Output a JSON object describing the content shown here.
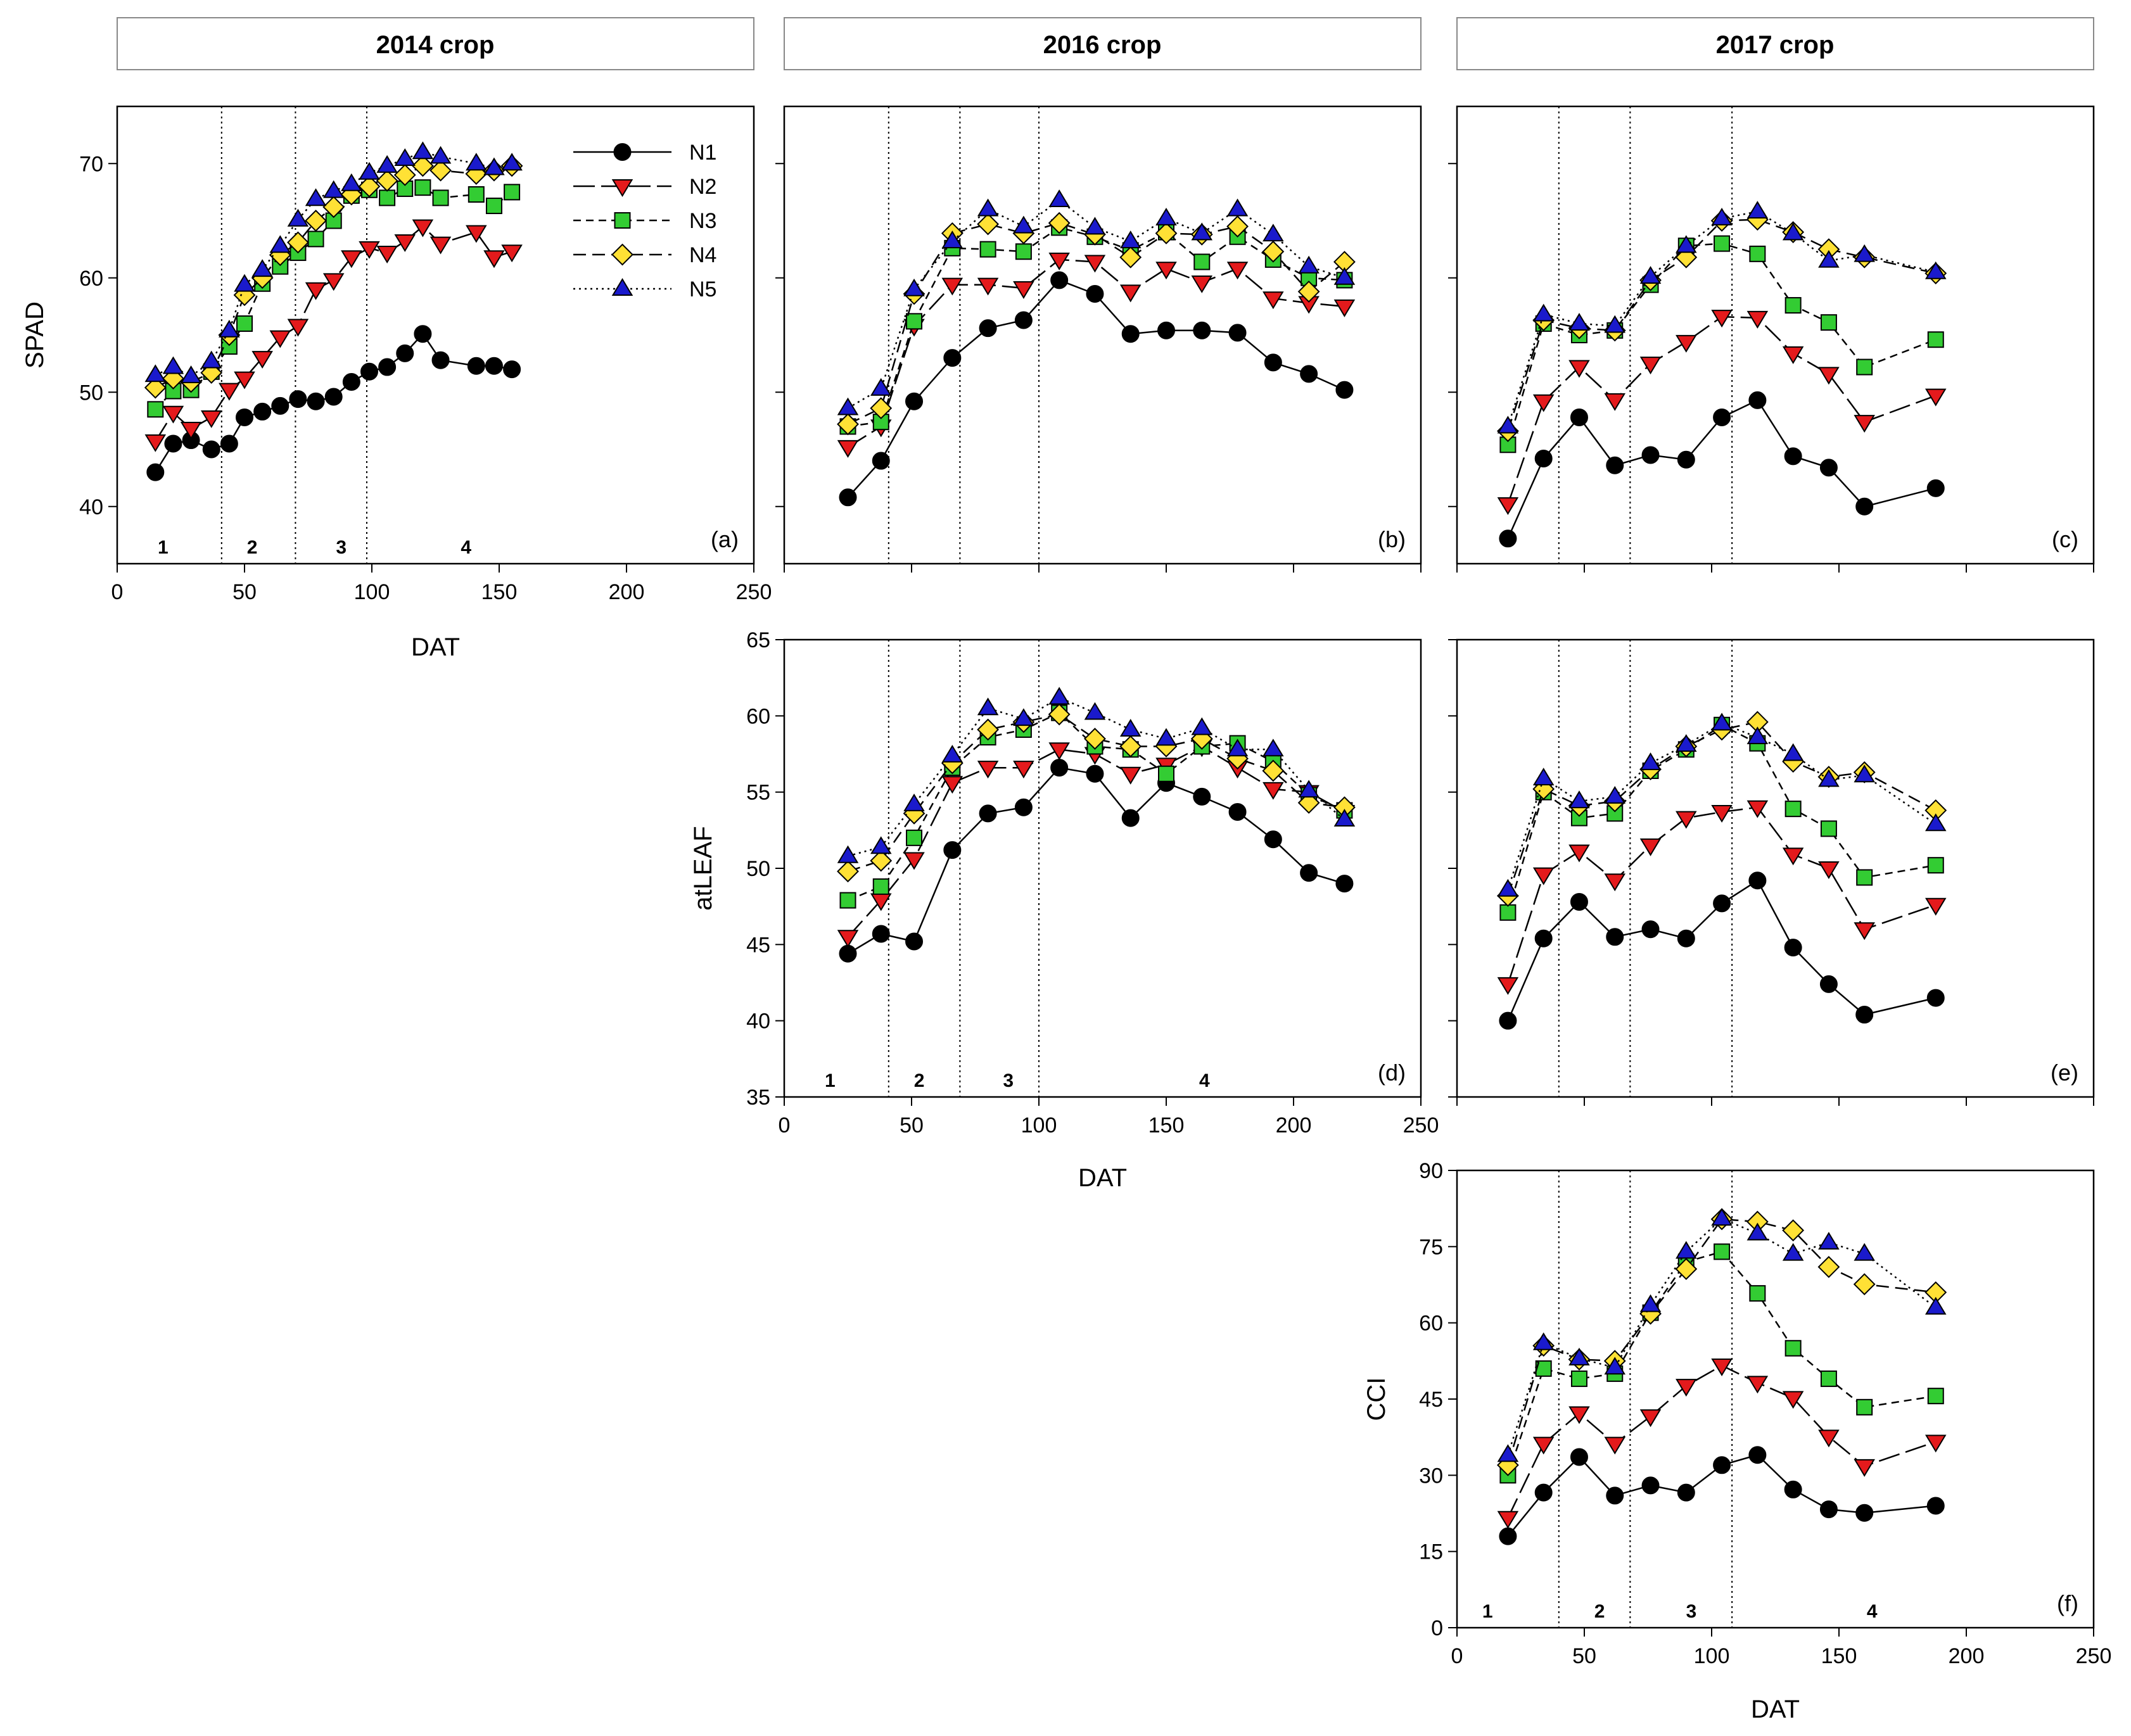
{
  "figure": {
    "headers": [
      "2014 crop",
      "2016 crop",
      "2017 crop"
    ],
    "series_names": [
      "N1",
      "N2",
      "N3",
      "N4",
      "N5"
    ],
    "series_styles": [
      {
        "name": "N1",
        "color": "#000000",
        "marker": "circle",
        "dash": "solid"
      },
      {
        "name": "N2",
        "color": "#e41a1c",
        "marker": "triangle-down",
        "dash": "longdash"
      },
      {
        "name": "N3",
        "color": "#33cc33",
        "marker": "square",
        "dash": "shortdash"
      },
      {
        "name": "N4",
        "color": "#ffe135",
        "marker": "diamond",
        "dash": "dash"
      },
      {
        "name": "N5",
        "color": "#1a1acc",
        "marker": "triangle-up",
        "dash": "dotted"
      }
    ]
  },
  "chart_data": [
    {
      "id": "a",
      "type": "line",
      "title": "2014 crop",
      "panel_tag": "(a)",
      "xlabel": "DAT",
      "ylabel": "SPAD",
      "xlim": [
        0,
        250
      ],
      "ylim": [
        35,
        75
      ],
      "xticks": [
        0,
        50,
        100,
        150,
        200,
        250
      ],
      "yticks": [
        40,
        50,
        60,
        70
      ],
      "phase_boundaries": [
        41,
        70,
        98
      ],
      "phase_labels": [
        {
          "x": 18,
          "text": "1"
        },
        {
          "x": 53,
          "text": "2"
        },
        {
          "x": 88,
          "text": "3"
        },
        {
          "x": 137,
          "text": "4"
        }
      ],
      "x": [
        15,
        22,
        29,
        37,
        44,
        50,
        57,
        64,
        71,
        78,
        85,
        92,
        99,
        106,
        113,
        120,
        127,
        141,
        148,
        155
      ],
      "series": [
        {
          "name": "N1",
          "values": [
            43.0,
            45.5,
            45.8,
            45.0,
            45.5,
            47.8,
            48.3,
            48.8,
            49.4,
            49.2,
            49.6,
            50.9,
            51.8,
            52.2,
            53.4,
            55.1,
            52.8,
            52.3,
            52.3,
            52.0
          ]
        },
        {
          "name": "N2",
          "values": [
            45.7,
            48.2,
            46.8,
            47.8,
            50.2,
            51.2,
            53.0,
            54.8,
            55.8,
            59.0,
            59.8,
            61.8,
            62.6,
            62.2,
            63.2,
            64.5,
            63.0,
            64.0,
            61.8,
            62.3
          ]
        },
        {
          "name": "N3",
          "values": [
            48.5,
            50.1,
            50.2,
            51.8,
            54.0,
            56.0,
            59.5,
            61.0,
            62.2,
            63.4,
            65.0,
            67.2,
            67.7,
            67.0,
            67.8,
            67.9,
            67.0,
            67.3,
            66.3,
            67.5
          ]
        },
        {
          "name": "N4",
          "values": [
            50.4,
            51.2,
            50.9,
            51.7,
            55.0,
            58.5,
            60.0,
            62.0,
            63.1,
            65.0,
            66.2,
            67.3,
            68.0,
            68.5,
            69.0,
            69.8,
            69.4,
            69.1,
            69.4,
            69.8
          ]
        },
        {
          "name": "N5",
          "values": [
            51.5,
            52.2,
            51.4,
            52.7,
            55.4,
            59.4,
            60.7,
            62.8,
            65.1,
            66.9,
            67.6,
            68.2,
            69.2,
            69.8,
            70.4,
            71.0,
            70.6,
            70.0,
            69.6,
            70.0
          ]
        }
      ]
    },
    {
      "id": "b",
      "type": "line",
      "title": "2016 crop",
      "panel_tag": "(b)",
      "xlabel": "",
      "ylabel": "",
      "xlim": [
        0,
        250
      ],
      "ylim": [
        35,
        75
      ],
      "xticks": [
        0,
        50,
        100,
        150,
        200,
        250
      ],
      "yticks": [
        40,
        50,
        60,
        70
      ],
      "phase_boundaries": [
        41,
        69,
        100
      ],
      "phase_labels": [],
      "x": [
        25,
        38,
        51,
        66,
        80,
        94,
        108,
        122,
        136,
        150,
        164,
        178,
        192,
        206,
        220
      ],
      "series": [
        {
          "name": "N1",
          "values": [
            40.8,
            44.0,
            49.2,
            53.0,
            55.6,
            56.3,
            59.8,
            58.6,
            55.1,
            55.4,
            55.4,
            55.2,
            52.6,
            51.6,
            50.2
          ]
        },
        {
          "name": "N2",
          "values": [
            45.2,
            47.0,
            55.8,
            59.4,
            59.4,
            59.1,
            61.6,
            61.4,
            58.8,
            60.8,
            59.6,
            60.8,
            58.2,
            57.8,
            57.5
          ]
        },
        {
          "name": "N3",
          "values": [
            47.0,
            47.4,
            56.2,
            62.6,
            62.5,
            62.3,
            64.4,
            63.6,
            62.4,
            64.0,
            61.4,
            63.6,
            61.6,
            60.0,
            59.8
          ]
        },
        {
          "name": "N4",
          "values": [
            47.2,
            48.6,
            58.6,
            63.9,
            64.7,
            63.9,
            64.8,
            63.8,
            61.8,
            63.9,
            63.8,
            64.5,
            62.3,
            58.8,
            61.4
          ]
        },
        {
          "name": "N5",
          "values": [
            48.6,
            50.3,
            59.0,
            63.2,
            66.0,
            64.5,
            66.8,
            64.4,
            63.2,
            65.2,
            63.9,
            66.0,
            63.8,
            61.0,
            60.0
          ]
        }
      ]
    },
    {
      "id": "c",
      "type": "line",
      "title": "2017 crop",
      "panel_tag": "(c)",
      "xlabel": "",
      "ylabel": "",
      "xlim": [
        0,
        250
      ],
      "ylim": [
        35,
        75
      ],
      "xticks": [
        0,
        50,
        100,
        150,
        200,
        250
      ],
      "yticks": [
        40,
        50,
        60,
        70
      ],
      "phase_boundaries": [
        40,
        68,
        108
      ],
      "phase_labels": [],
      "x": [
        20,
        34,
        48,
        62,
        76,
        90,
        104,
        118,
        132,
        146,
        160,
        188
      ],
      "series": [
        {
          "name": "N1",
          "values": [
            37.2,
            44.2,
            47.8,
            43.6,
            44.5,
            44.1,
            47.8,
            49.3,
            44.4,
            43.4,
            40.0,
            41.6
          ]
        },
        {
          "name": "N2",
          "values": [
            40.2,
            49.2,
            52.2,
            49.3,
            52.5,
            54.4,
            56.6,
            56.5,
            53.4,
            51.6,
            47.4,
            49.7
          ]
        },
        {
          "name": "N3",
          "values": [
            45.4,
            56.0,
            55.0,
            55.4,
            59.4,
            62.8,
            63.0,
            62.1,
            57.6,
            56.1,
            52.2,
            54.6
          ]
        },
        {
          "name": "N4",
          "values": [
            46.6,
            56.3,
            55.6,
            55.4,
            59.8,
            61.8,
            65.0,
            65.1,
            64.0,
            62.5,
            61.8,
            60.4
          ]
        },
        {
          "name": "N5",
          "values": [
            47.0,
            56.8,
            56.0,
            55.8,
            60.1,
            62.8,
            65.2,
            65.8,
            63.9,
            61.5,
            62.0,
            60.5
          ]
        }
      ]
    },
    {
      "id": "d",
      "type": "line",
      "title": "",
      "panel_tag": "(d)",
      "xlabel": "DAT",
      "ylabel": "atLEAF",
      "xlim": [
        0,
        250
      ],
      "ylim": [
        35,
        65
      ],
      "xticks": [
        0,
        50,
        100,
        150,
        200,
        250
      ],
      "yticks": [
        35,
        40,
        45,
        50,
        55,
        60,
        65
      ],
      "phase_boundaries": [
        41,
        69,
        100
      ],
      "phase_labels": [
        {
          "x": 18,
          "text": "1"
        },
        {
          "x": 53,
          "text": "2"
        },
        {
          "x": 88,
          "text": "3"
        },
        {
          "x": 165,
          "text": "4"
        }
      ],
      "x": [
        25,
        38,
        51,
        66,
        80,
        94,
        108,
        122,
        136,
        150,
        164,
        178,
        192,
        206,
        220
      ],
      "series": [
        {
          "name": "N1",
          "values": [
            44.4,
            45.7,
            45.2,
            51.2,
            53.6,
            54.0,
            56.6,
            56.2,
            53.3,
            55.6,
            54.7,
            53.7,
            51.9,
            49.7,
            49.0
          ]
        },
        {
          "name": "N2",
          "values": [
            45.5,
            47.9,
            50.6,
            55.6,
            56.6,
            56.6,
            57.8,
            57.5,
            56.2,
            56.8,
            58.0,
            56.6,
            55.2,
            55.0,
            53.7
          ]
        },
        {
          "name": "N3",
          "values": [
            47.9,
            48.8,
            52.0,
            56.6,
            58.6,
            59.1,
            60.2,
            58.0,
            57.8,
            56.2,
            58.0,
            58.2,
            57.0,
            54.8,
            53.8
          ]
        },
        {
          "name": "N4",
          "values": [
            49.8,
            50.5,
            53.6,
            56.9,
            59.1,
            59.6,
            60.1,
            58.5,
            58.0,
            58.0,
            58.5,
            57.2,
            56.4,
            54.3,
            54.0
          ]
        },
        {
          "name": "N5",
          "values": [
            50.8,
            51.4,
            54.2,
            57.4,
            60.5,
            59.8,
            61.2,
            60.2,
            59.1,
            58.5,
            59.2,
            57.8,
            57.8,
            55.1,
            53.2
          ]
        }
      ]
    },
    {
      "id": "e",
      "type": "line",
      "title": "",
      "panel_tag": "(e)",
      "xlabel": "",
      "ylabel": "",
      "xlim": [
        0,
        250
      ],
      "ylim": [
        35,
        65
      ],
      "xticks": [
        0,
        50,
        100,
        150,
        200,
        250
      ],
      "yticks": [
        35,
        40,
        45,
        50,
        55,
        60,
        65
      ],
      "phase_boundaries": [
        40,
        68,
        108
      ],
      "phase_labels": [],
      "x": [
        20,
        34,
        48,
        62,
        76,
        90,
        104,
        118,
        132,
        146,
        160,
        188
      ],
      "series": [
        {
          "name": "N1",
          "values": [
            40.0,
            45.4,
            47.8,
            45.5,
            46.0,
            45.4,
            47.7,
            49.2,
            44.8,
            42.4,
            40.4,
            41.5
          ]
        },
        {
          "name": "N2",
          "values": [
            42.4,
            49.6,
            51.1,
            49.2,
            51.5,
            53.3,
            53.7,
            54.0,
            50.9,
            50.0,
            46.0,
            47.6
          ]
        },
        {
          "name": "N3",
          "values": [
            47.1,
            55.0,
            53.3,
            53.6,
            56.4,
            57.8,
            59.4,
            58.2,
            53.9,
            52.6,
            49.4,
            50.2
          ]
        },
        {
          "name": "N4",
          "values": [
            48.2,
            55.2,
            54.1,
            54.4,
            56.5,
            58.0,
            59.1,
            59.6,
            57.0,
            56.0,
            56.3,
            53.8
          ]
        },
        {
          "name": "N5",
          "values": [
            48.6,
            55.9,
            54.4,
            54.7,
            56.9,
            58.1,
            59.5,
            58.6,
            57.5,
            55.8,
            56.1,
            52.9
          ]
        }
      ]
    },
    {
      "id": "f",
      "type": "line",
      "title": "",
      "panel_tag": "(f)",
      "xlabel": "DAT",
      "ylabel": "CCI",
      "xlim": [
        0,
        250
      ],
      "ylim": [
        0,
        90
      ],
      "xticks": [
        0,
        50,
        100,
        150,
        200,
        250
      ],
      "yticks": [
        0,
        15,
        30,
        45,
        60,
        75,
        90
      ],
      "phase_boundaries": [
        40,
        68,
        108
      ],
      "phase_labels": [
        {
          "x": 12,
          "text": "1"
        },
        {
          "x": 56,
          "text": "2"
        },
        {
          "x": 92,
          "text": "3"
        },
        {
          "x": 163,
          "text": "4"
        }
      ],
      "x": [
        20,
        34,
        48,
        62,
        76,
        90,
        104,
        118,
        132,
        146,
        160,
        188
      ],
      "series": [
        {
          "name": "N1",
          "values": [
            18.0,
            26.6,
            33.6,
            26.0,
            28.0,
            26.6,
            32.0,
            34.0,
            27.2,
            23.3,
            22.6,
            24.0
          ]
        },
        {
          "name": "N2",
          "values": [
            21.6,
            36.2,
            42.2,
            36.2,
            41.6,
            47.6,
            51.6,
            48.2,
            45.2,
            37.6,
            31.8,
            36.6
          ]
        },
        {
          "name": "N3",
          "values": [
            30.0,
            51.0,
            49.0,
            50.0,
            62.0,
            72.0,
            74.0,
            65.8,
            55.0,
            49.0,
            43.4,
            45.6
          ]
        },
        {
          "name": "N4",
          "values": [
            32.0,
            55.5,
            52.8,
            52.5,
            61.8,
            70.6,
            80.4,
            79.9,
            78.2,
            71.0,
            67.6,
            66.0
          ]
        },
        {
          "name": "N5",
          "values": [
            34.0,
            56.0,
            53.0,
            51.2,
            63.5,
            74.0,
            80.5,
            77.6,
            73.6,
            75.8,
            73.6,
            63.0
          ]
        }
      ]
    }
  ]
}
